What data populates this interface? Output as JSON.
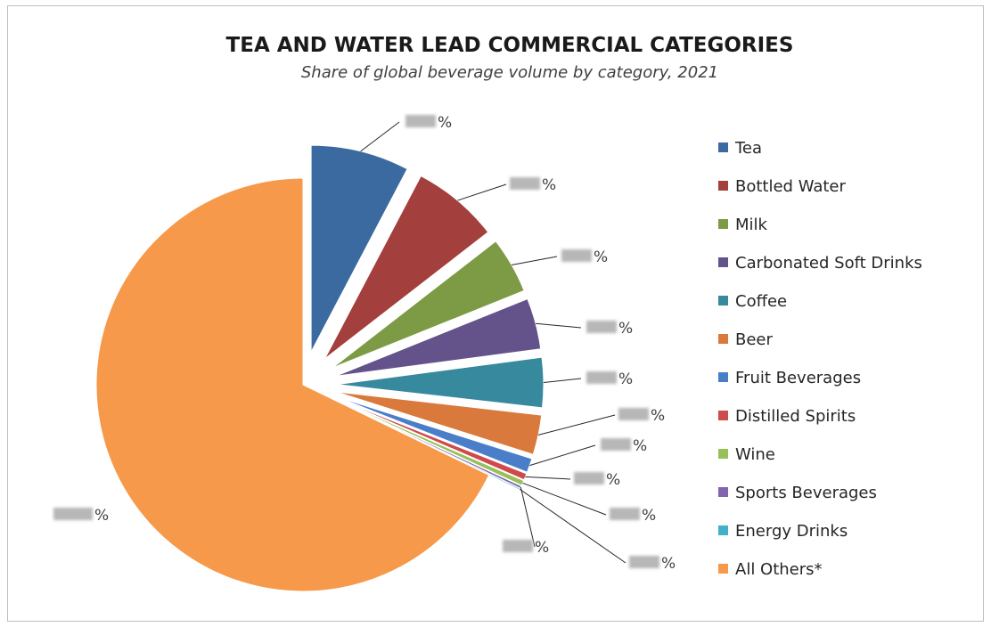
{
  "chart_data": {
    "type": "pie",
    "title": "TEA AND WATER LEAD COMMERCIAL CATEGORIES",
    "subtitle": "Share of global beverage volume by category, 2021",
    "categories": [
      "Tea",
      "Bottled Water",
      "Milk",
      "Carbonated Soft Drinks",
      "Coffee",
      "Beer",
      "Fruit Beverages",
      "Distilled Spirits",
      "Wine",
      "Sports Beverages",
      "Energy Drinks",
      "All Others*"
    ],
    "values": [
      7.7,
      6.8,
      4.4,
      4.0,
      3.9,
      3.1,
      1.1,
      0.5,
      0.4,
      0.2,
      0.1,
      67.8
    ],
    "colors": [
      "#3b6aa0",
      "#a33f3c",
      "#7d9a45",
      "#64538b",
      "#37899e",
      "#d9793b",
      "#4a7ec9",
      "#cf4a4a",
      "#96c15a",
      "#8264b0",
      "#3fb1c8",
      "#f6994a"
    ],
    "exploded": [
      true,
      true,
      true,
      true,
      true,
      true,
      true,
      true,
      true,
      true,
      true,
      false
    ],
    "value_label_suffix": "%",
    "value_labels_obscured": true,
    "legend_position": "right"
  }
}
